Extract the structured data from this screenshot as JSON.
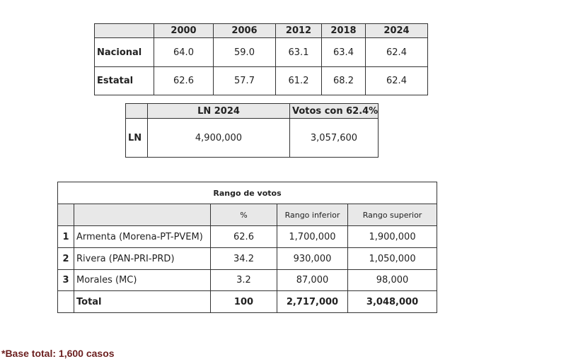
{
  "table1": {
    "header": [
      "2000",
      "2006",
      "2012",
      "2018",
      "2024"
    ],
    "rows": [
      {
        "label": "Nacional",
        "values": [
          "64.0",
          "59.0",
          "63.1",
          "63.4",
          "62.4"
        ]
      },
      {
        "label": "Estatal",
        "values": [
          "62.6",
          "57.7",
          "61.2",
          "68.2",
          "62.4"
        ]
      }
    ]
  },
  "table2": {
    "header": [
      "LN 2024",
      "Votos con 62.4%"
    ],
    "rows": [
      {
        "label": "LN",
        "values": [
          "4,900,000",
          "3,057,600"
        ]
      }
    ]
  },
  "table3": {
    "title": "Rango de votos",
    "header": [
      "%",
      "Rango inferior",
      "Rango superior"
    ],
    "rows": [
      {
        "rank": "1",
        "name": "Armenta (Morena-PT-PVEM)",
        "values": [
          "62.6",
          "1,700,000",
          "1,900,000"
        ]
      },
      {
        "rank": "2",
        "name": "Rivera (PAN-PRI-PRD)",
        "values": [
          "34.2",
          "930,000",
          "1,050,000"
        ]
      },
      {
        "rank": "3",
        "name": "Morales (MC)",
        "values": [
          "3.2",
          "87,000",
          "98,000"
        ]
      }
    ],
    "total": {
      "label": "Total",
      "values": [
        "100",
        "2,717,000",
        "3,048,000"
      ]
    }
  },
  "footnote": "*Base total: 1,600 casos"
}
